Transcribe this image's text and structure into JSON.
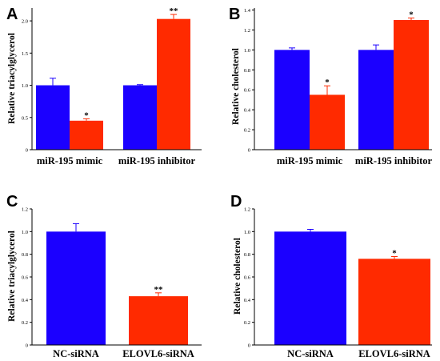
{
  "chart_data": [
    {
      "type": "bar",
      "panel": "A",
      "ylabel": "Relative triacylglycerol",
      "categories": [
        "miR-195 mimic",
        "miR-195 inhibitor"
      ],
      "ylim": [
        0,
        2.2
      ],
      "yticks": [
        "0",
        "0.5",
        "1.0",
        "1.5",
        "2.0"
      ],
      "yticks_values": [
        0,
        0.5,
        1.0,
        1.5,
        2.0
      ],
      "series": [
        {
          "values": [
            1.0,
            1.0
          ],
          "errors": [
            0.11,
            0.01
          ],
          "color": "#1b00ff"
        },
        {
          "values": [
            0.45,
            2.03
          ],
          "errors": [
            0.03,
            0.07
          ],
          "color": "#ff2a00"
        }
      ],
      "annotations": [
        "*",
        "**"
      ]
    },
    {
      "type": "bar",
      "panel": "B",
      "ylabel": "Relative cholesterol",
      "categories": [
        "miR-195 mimic",
        "miR-195 inhibitor"
      ],
      "ylim": [
        0,
        1.42
      ],
      "yticks": [
        "0",
        "0.2",
        "0.4",
        "0.6",
        "0.8",
        "1.0",
        "1.2",
        "1.4"
      ],
      "yticks_values": [
        0,
        0.2,
        0.4,
        0.6,
        0.8,
        1.0,
        1.2,
        1.4
      ],
      "series": [
        {
          "values": [
            1.0,
            1.0
          ],
          "errors": [
            0.02,
            0.05
          ],
          "color": "#1b00ff"
        },
        {
          "values": [
            0.55,
            1.3
          ],
          "errors": [
            0.09,
            0.02
          ],
          "color": "#ff2a00"
        }
      ],
      "annotations": [
        "*",
        "*"
      ]
    },
    {
      "type": "bar",
      "panel": "C",
      "ylabel": "Relative triacylglycerol",
      "categories": [
        "NC-siRNA",
        "ELOVL6-siRNA"
      ],
      "ylim": [
        0,
        1.2
      ],
      "yticks": [
        "0",
        "0.2",
        "0.4",
        "0.6",
        "0.8",
        "1.0",
        "1.2"
      ],
      "yticks_values": [
        0,
        0.2,
        0.4,
        0.6,
        0.8,
        1.0,
        1.2
      ],
      "values": [
        1.0,
        0.43
      ],
      "errors": [
        0.07,
        0.03
      ],
      "colors": [
        "#1b00ff",
        "#ff2a00"
      ],
      "annotations": [
        "",
        "**"
      ]
    },
    {
      "type": "bar",
      "panel": "D",
      "ylabel": "Relative cholesterol",
      "categories": [
        "NC-siRNA",
        "ELOVL6-siRNA"
      ],
      "ylim": [
        0,
        1.2
      ],
      "yticks": [
        "0",
        "0.2",
        "0.4",
        "0.6",
        "0.8",
        "1.0",
        "1.2"
      ],
      "yticks_values": [
        0,
        0.2,
        0.4,
        0.6,
        0.8,
        1.0,
        1.2
      ],
      "values": [
        1.0,
        0.76
      ],
      "errors": [
        0.02,
        0.02
      ],
      "colors": [
        "#1b00ff",
        "#ff2a00"
      ],
      "annotations": [
        "",
        "*"
      ]
    }
  ]
}
